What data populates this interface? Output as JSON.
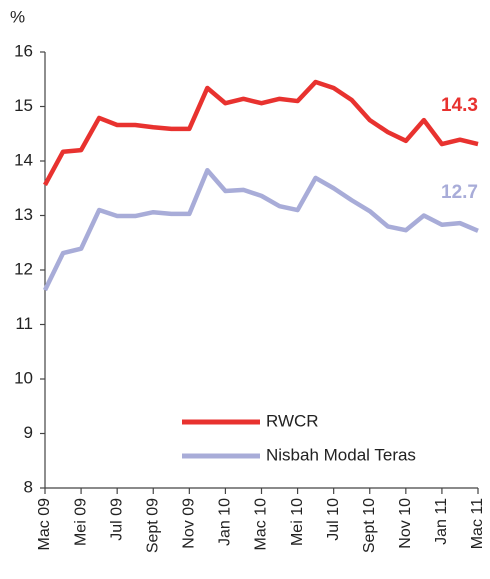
{
  "chart_data": {
    "type": "line",
    "y_label": "%",
    "categories": [
      "Mac 09",
      null,
      "Mei 09",
      null,
      "Jul 09",
      null,
      "Sept 09",
      null,
      "Nov 09",
      null,
      "Jan 10",
      null,
      "Mac 10",
      null,
      "Mei 10",
      null,
      "Jul 10",
      null,
      "Sept 10",
      null,
      "Nov 10",
      null,
      "Jan 11",
      null,
      "Mac 11"
    ],
    "series": [
      {
        "name": "RWCR",
        "color": "#e8322f",
        "values": [
          13.56,
          14.17,
          14.2,
          14.79,
          14.66,
          14.66,
          14.62,
          14.59,
          14.59,
          15.34,
          15.06,
          15.14,
          15.06,
          15.14,
          15.1,
          15.45,
          15.34,
          15.12,
          14.75,
          14.53,
          14.37,
          14.75,
          14.31,
          14.39,
          14.31
        ],
        "value_labels": [
          null,
          null,
          null,
          null,
          null,
          null,
          null,
          null,
          null,
          null,
          null,
          null,
          null,
          null,
          null,
          null,
          null,
          null,
          null,
          null,
          null,
          null,
          null,
          null,
          "14.3"
        ]
      },
      {
        "name": "Nisbah Modal Teras",
        "color": "#a8acd8",
        "values": [
          11.63,
          12.31,
          12.39,
          13.1,
          12.99,
          12.99,
          13.06,
          13.03,
          13.03,
          13.83,
          13.45,
          13.47,
          13.36,
          13.17,
          13.1,
          13.69,
          13.5,
          13.28,
          13.08,
          12.8,
          12.73,
          13.0,
          12.83,
          12.86,
          12.72
        ],
        "value_labels": [
          null,
          null,
          null,
          null,
          null,
          null,
          null,
          null,
          null,
          null,
          null,
          null,
          null,
          null,
          null,
          null,
          null,
          null,
          null,
          null,
          null,
          null,
          null,
          null,
          "12.7"
        ]
      }
    ],
    "ylim": [
      8,
      16
    ],
    "yticks": [
      8,
      9,
      10,
      11,
      12,
      13,
      14,
      15,
      16
    ],
    "grid": false,
    "legend": "lower center"
  }
}
